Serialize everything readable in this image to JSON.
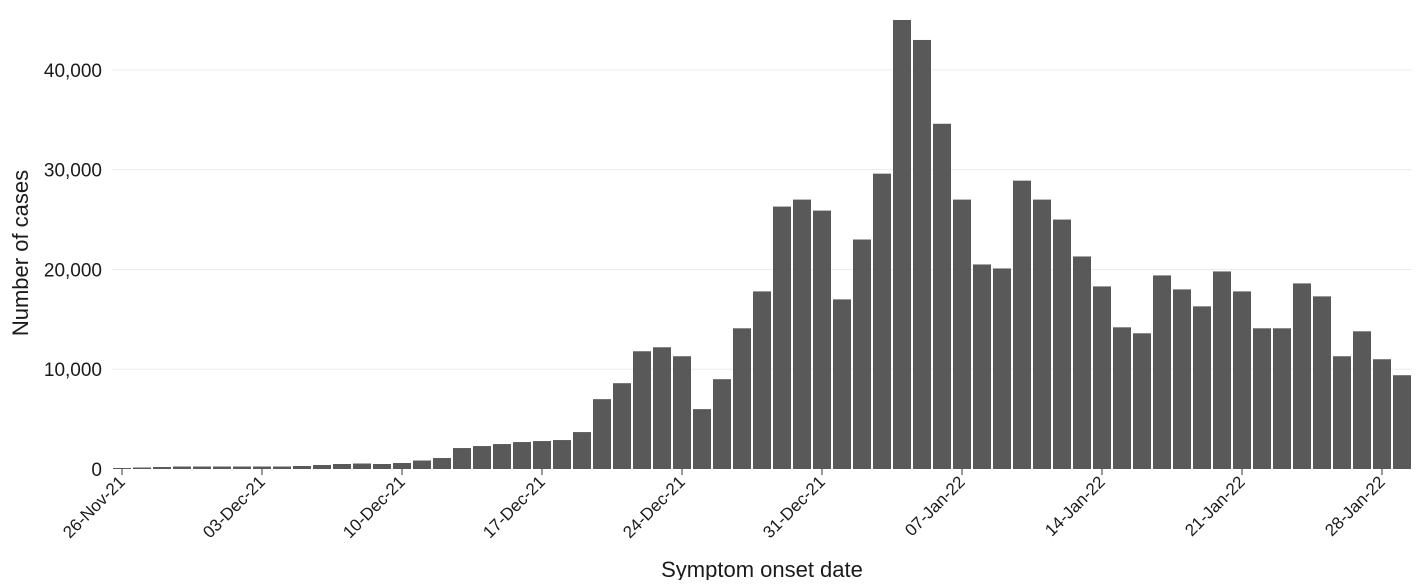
{
  "chart_data": {
    "type": "bar",
    "title": "",
    "xlabel": "Symptom onset date",
    "ylabel": "Number of cases",
    "ylim": [
      0,
      45000
    ],
    "grid": "horizontal",
    "legend": "none",
    "bar_color": "#595959",
    "grid_color": "#ebebeb",
    "x_start_date": "2021-11-26",
    "y_ticks": [
      {
        "value": 0,
        "label": "0"
      },
      {
        "value": 10000,
        "label": "10,000"
      },
      {
        "value": 20000,
        "label": "20,000"
      },
      {
        "value": 30000,
        "label": "30,000"
      },
      {
        "value": 40000,
        "label": "40,000"
      }
    ],
    "x_ticks": [
      {
        "date": "2021-11-26",
        "label": "26-Nov-21"
      },
      {
        "date": "2021-12-03",
        "label": "03-Dec-21"
      },
      {
        "date": "2021-12-10",
        "label": "10-Dec-21"
      },
      {
        "date": "2021-12-17",
        "label": "17-Dec-21"
      },
      {
        "date": "2021-12-24",
        "label": "24-Dec-21"
      },
      {
        "date": "2021-12-31",
        "label": "31-Dec-21"
      },
      {
        "date": "2022-01-07",
        "label": "07-Jan-22"
      },
      {
        "date": "2022-01-14",
        "label": "14-Jan-22"
      },
      {
        "date": "2022-01-21",
        "label": "21-Jan-22"
      },
      {
        "date": "2022-01-28",
        "label": "28-Jan-22"
      }
    ],
    "series": [
      {
        "values": [
          100,
          150,
          200,
          250,
          250,
          250,
          250,
          250,
          250,
          300,
          400,
          500,
          550,
          500,
          600,
          850,
          1100,
          2100,
          2300,
          2500,
          2700,
          2800,
          2900,
          3700,
          7000,
          8600,
          11800,
          12200,
          11300,
          6000,
          9000,
          14100,
          17800,
          26300,
          27000,
          25900,
          17000,
          23000,
          29600,
          45000,
          43000,
          34600,
          27000,
          20500,
          20100,
          28900,
          27000,
          25000,
          21300,
          18300,
          14200,
          13600,
          19400,
          18000,
          16300,
          19800,
          17800,
          14100,
          14100,
          18600,
          17300,
          11300,
          13800,
          11000,
          9400
        ]
      }
    ]
  }
}
